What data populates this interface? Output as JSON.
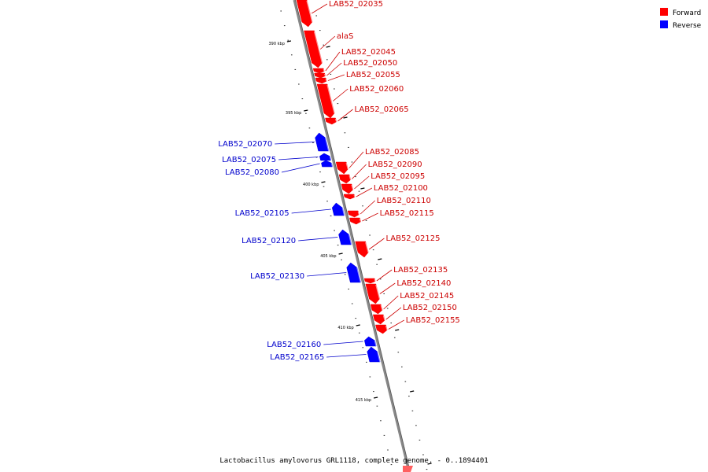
{
  "legend": [
    {
      "label": "Forward",
      "color": "#ff0000"
    },
    {
      "label": "Reverse",
      "color": "#0000ff"
    }
  ],
  "caption": "Lactobacillus amylovorus GRL1118, complete genome. - 0..1894401",
  "scale_labels": [
    "390 kbp",
    "395 kbp",
    "400 kbp",
    "405 kbp",
    "410 kbp",
    "415 kbp"
  ],
  "genes_forward": [
    "LAB52_02035",
    "alaS",
    "LAB52_02045",
    "LAB52_02050",
    "LAB52_02055",
    "LAB52_02060",
    "LAB52_02065",
    "LAB52_02085",
    "LAB52_02090",
    "LAB52_02095",
    "LAB52_02100",
    "LAB52_02110",
    "LAB52_02115",
    "LAB52_02125",
    "LAB52_02135",
    "LAB52_02140",
    "LAB52_02145",
    "LAB52_02150",
    "LAB52_02155"
  ],
  "genes_reverse": [
    "LAB52_02070",
    "LAB52_02075",
    "LAB52_02080",
    "LAB52_02105",
    "LAB52_02120",
    "LAB52_02130",
    "LAB52_02160",
    "LAB52_02165"
  ]
}
